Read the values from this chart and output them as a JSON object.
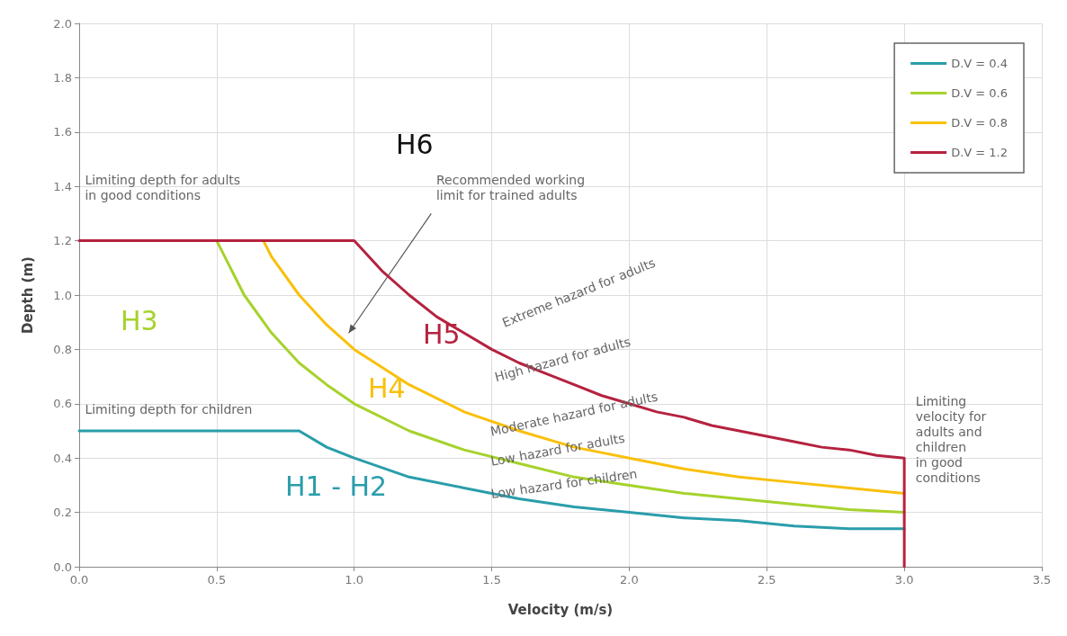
{
  "chart_data": {
    "type": "line",
    "xlabel": "Velocity (m/s)",
    "ylabel": "Depth (m)",
    "xlim": [
      0,
      3.5
    ],
    "xticks": [
      {
        "value": 0,
        "label": "0.0"
      },
      0.5,
      {
        "value": 1,
        "label": "1.0"
      },
      1.5,
      {
        "value": 2,
        "label": "2.0"
      },
      2.5,
      {
        "value": 3,
        "label": "3.0"
      },
      3.5
    ],
    "ylim": [
      0,
      2
    ],
    "yticks": [
      {
        "value": 0,
        "label": "0.0"
      },
      0.2,
      0.4,
      0.6,
      0.8,
      {
        "value": 1,
        "label": "1.0"
      },
      1.2,
      1.4,
      1.6,
      1.8,
      {
        "value": 2,
        "label": "2.0"
      }
    ],
    "grid": true,
    "legend": "top right",
    "marker": "none",
    "line_style": "solid",
    "series": [
      {
        "name": "D.V = 0.4",
        "color": "#2a9dab",
        "x": [
          0,
          0.8,
          0.9,
          1.0,
          1.2,
          1.4,
          1.6,
          1.8,
          2.0,
          2.2,
          2.4,
          2.6,
          2.8,
          3.0
        ],
        "values": [
          0.5,
          0.5,
          0.44,
          0.4,
          0.33,
          0.29,
          0.25,
          0.22,
          0.2,
          0.18,
          0.17,
          0.15,
          0.14,
          0.14
        ]
      },
      {
        "name": "D.V = 0.6",
        "color": "#a6d22c",
        "x": [
          0.5,
          0.6,
          0.7,
          0.8,
          0.9,
          1.0,
          1.2,
          1.4,
          1.6,
          1.8,
          2.0,
          2.2,
          2.4,
          2.6,
          2.8,
          3.0
        ],
        "values": [
          1.2,
          1.0,
          0.86,
          0.75,
          0.67,
          0.6,
          0.5,
          0.43,
          0.38,
          0.33,
          0.3,
          0.27,
          0.25,
          0.23,
          0.21,
          0.2
        ]
      },
      {
        "name": "D.V = 0.8",
        "color": "#f9c00c",
        "x": [
          0.67,
          0.7,
          0.8,
          0.9,
          1.0,
          1.2,
          1.4,
          1.6,
          1.8,
          2.0,
          2.2,
          2.4,
          2.6,
          2.8,
          3.0
        ],
        "values": [
          1.2,
          1.14,
          1.0,
          0.89,
          0.8,
          0.67,
          0.57,
          0.5,
          0.44,
          0.4,
          0.36,
          0.33,
          0.31,
          0.29,
          0.27
        ]
      },
      {
        "name": "D.V = 1.2",
        "color": "#b5223f",
        "x": [
          0,
          1.0,
          1.1,
          1.2,
          1.3,
          1.4,
          1.5,
          1.6,
          1.7,
          1.8,
          1.9,
          2.0,
          2.1,
          2.2,
          2.3,
          2.4,
          2.5,
          2.6,
          2.7,
          2.8,
          2.9,
          3.0,
          3.0
        ],
        "values": [
          1.2,
          1.2,
          1.09,
          1.0,
          0.92,
          0.86,
          0.8,
          0.75,
          0.71,
          0.67,
          0.63,
          0.6,
          0.57,
          0.55,
          0.52,
          0.5,
          0.48,
          0.46,
          0.44,
          0.43,
          0.41,
          0.4,
          0
        ]
      }
    ],
    "annotations": [
      "Limiting depth for adults\nin good conditions",
      "Recommended working\nlimit for trained adults",
      "Extreme hazard for adults",
      "High hazard for adults",
      "Moderate hazard for adults",
      "Low hazard for adults",
      "Low hazard for children",
      "Limiting depth for children",
      "Limiting\nvelocity for\nadults and\nchildren\nin good\nconditions",
      "H6",
      "H3",
      "H4",
      "H5",
      "H1 - H2"
    ]
  }
}
